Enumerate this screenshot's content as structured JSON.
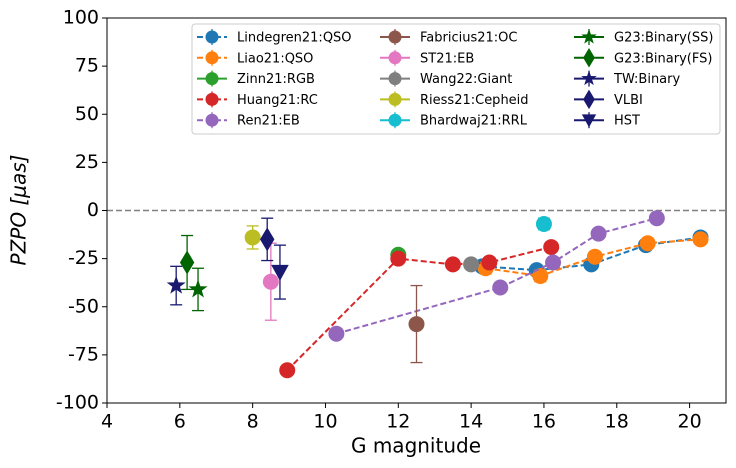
{
  "chart_data": {
    "type": "scatter",
    "xlabel": "G magnitude",
    "ylabel": "PZPO [μas]",
    "xlim": [
      4,
      21
    ],
    "xticks": [
      4,
      6,
      8,
      10,
      12,
      14,
      16,
      18,
      20
    ],
    "ylim": [
      -100,
      100
    ],
    "yticks": [
      -100,
      -75,
      -50,
      -25,
      0,
      25,
      50,
      75,
      100
    ],
    "reference_line": {
      "value": 0,
      "color": "#808080",
      "style": "dashed"
    },
    "legend": "upper right",
    "legend_columns": 3,
    "series": [
      {
        "name": "Lindegren21:QSO",
        "color": "#1f77b4",
        "marker": "circle",
        "line": "dashed",
        "x": [
          14.3,
          15.8,
          17.3,
          18.8,
          20.3
        ],
        "values": [
          -29,
          -31,
          -28,
          -18,
          -14
        ],
        "errors": [
          1,
          1,
          1,
          1,
          1
        ]
      },
      {
        "name": "Liao21:QSO",
        "color": "#ff7f0e",
        "marker": "circle",
        "line": "dashed",
        "x": [
          14.4,
          15.9,
          17.4,
          18.85,
          20.3
        ],
        "values": [
          -30,
          -34,
          -24,
          -17,
          -15
        ],
        "errors": [
          3,
          3,
          2,
          2,
          2
        ]
      },
      {
        "name": "Zinn21:RGB",
        "color": "#2ca02c",
        "marker": "circle",
        "line": "none",
        "x": [
          12.0
        ],
        "values": [
          -23
        ],
        "errors": [
          2
        ]
      },
      {
        "name": "Huang21:RC",
        "color": "#d62728",
        "marker": "circle",
        "line": "dashed",
        "x": [
          8.95,
          12.0,
          13.5,
          14.5,
          16.2
        ],
        "values": [
          -83,
          -25,
          -28,
          -27,
          -19
        ],
        "errors": [
          1,
          1,
          1,
          1,
          1
        ]
      },
      {
        "name": "Ren21:EB",
        "color": "#9467bd",
        "marker": "circle",
        "line": "dashed",
        "x": [
          10.3,
          14.8,
          16.25,
          17.5,
          19.1
        ],
        "values": [
          -64,
          -40,
          -27,
          -12,
          -4
        ],
        "errors": [
          1,
          1,
          1,
          1,
          1
        ]
      },
      {
        "name": "Fabricius21:OC",
        "color": "#8c564b",
        "marker": "circle",
        "line": "none",
        "x": [
          12.5
        ],
        "values": [
          -59
        ],
        "errors": [
          20
        ]
      },
      {
        "name": "ST21:EB",
        "color": "#e377c2",
        "marker": "circle",
        "line": "none",
        "x": [
          8.5
        ],
        "values": [
          -37
        ],
        "errors": [
          20
        ]
      },
      {
        "name": "Wang22:Giant",
        "color": "#7f7f7f",
        "marker": "circle",
        "line": "none",
        "x": [
          14.0
        ],
        "values": [
          -28
        ],
        "errors": [
          1
        ]
      },
      {
        "name": "Riess21:Cepheid",
        "color": "#bcbd22",
        "marker": "circle",
        "line": "none",
        "x": [
          8.0
        ],
        "values": [
          -14
        ],
        "errors": [
          6
        ]
      },
      {
        "name": "Bhardwaj21:RRL",
        "color": "#17becf",
        "marker": "circle",
        "line": "none",
        "x": [
          16.0
        ],
        "values": [
          -7
        ],
        "errors": [
          3
        ]
      },
      {
        "name": "G23:Binary(SS)",
        "color": "#006400",
        "marker": "star",
        "line": "none",
        "x": [
          6.5
        ],
        "values": [
          -41
        ],
        "errors": [
          11
        ]
      },
      {
        "name": "G23:Binary(FS)",
        "color": "#006400",
        "marker": "diamond",
        "line": "none",
        "x": [
          6.2
        ],
        "values": [
          -27
        ],
        "errors": [
          14
        ]
      },
      {
        "name": "TW:Binary",
        "color": "#191970",
        "marker": "star",
        "line": "none",
        "x": [
          5.9
        ],
        "values": [
          -39
        ],
        "errors": [
          10
        ]
      },
      {
        "name": "VLBI",
        "color": "#191970",
        "marker": "diamond",
        "line": "none",
        "x": [
          8.4
        ],
        "values": [
          -15
        ],
        "errors": [
          11
        ]
      },
      {
        "name": "HST",
        "color": "#191970",
        "marker": "triangle-down",
        "line": "none",
        "x": [
          8.75
        ],
        "values": [
          -32
        ],
        "errors": [
          14
        ]
      }
    ]
  }
}
